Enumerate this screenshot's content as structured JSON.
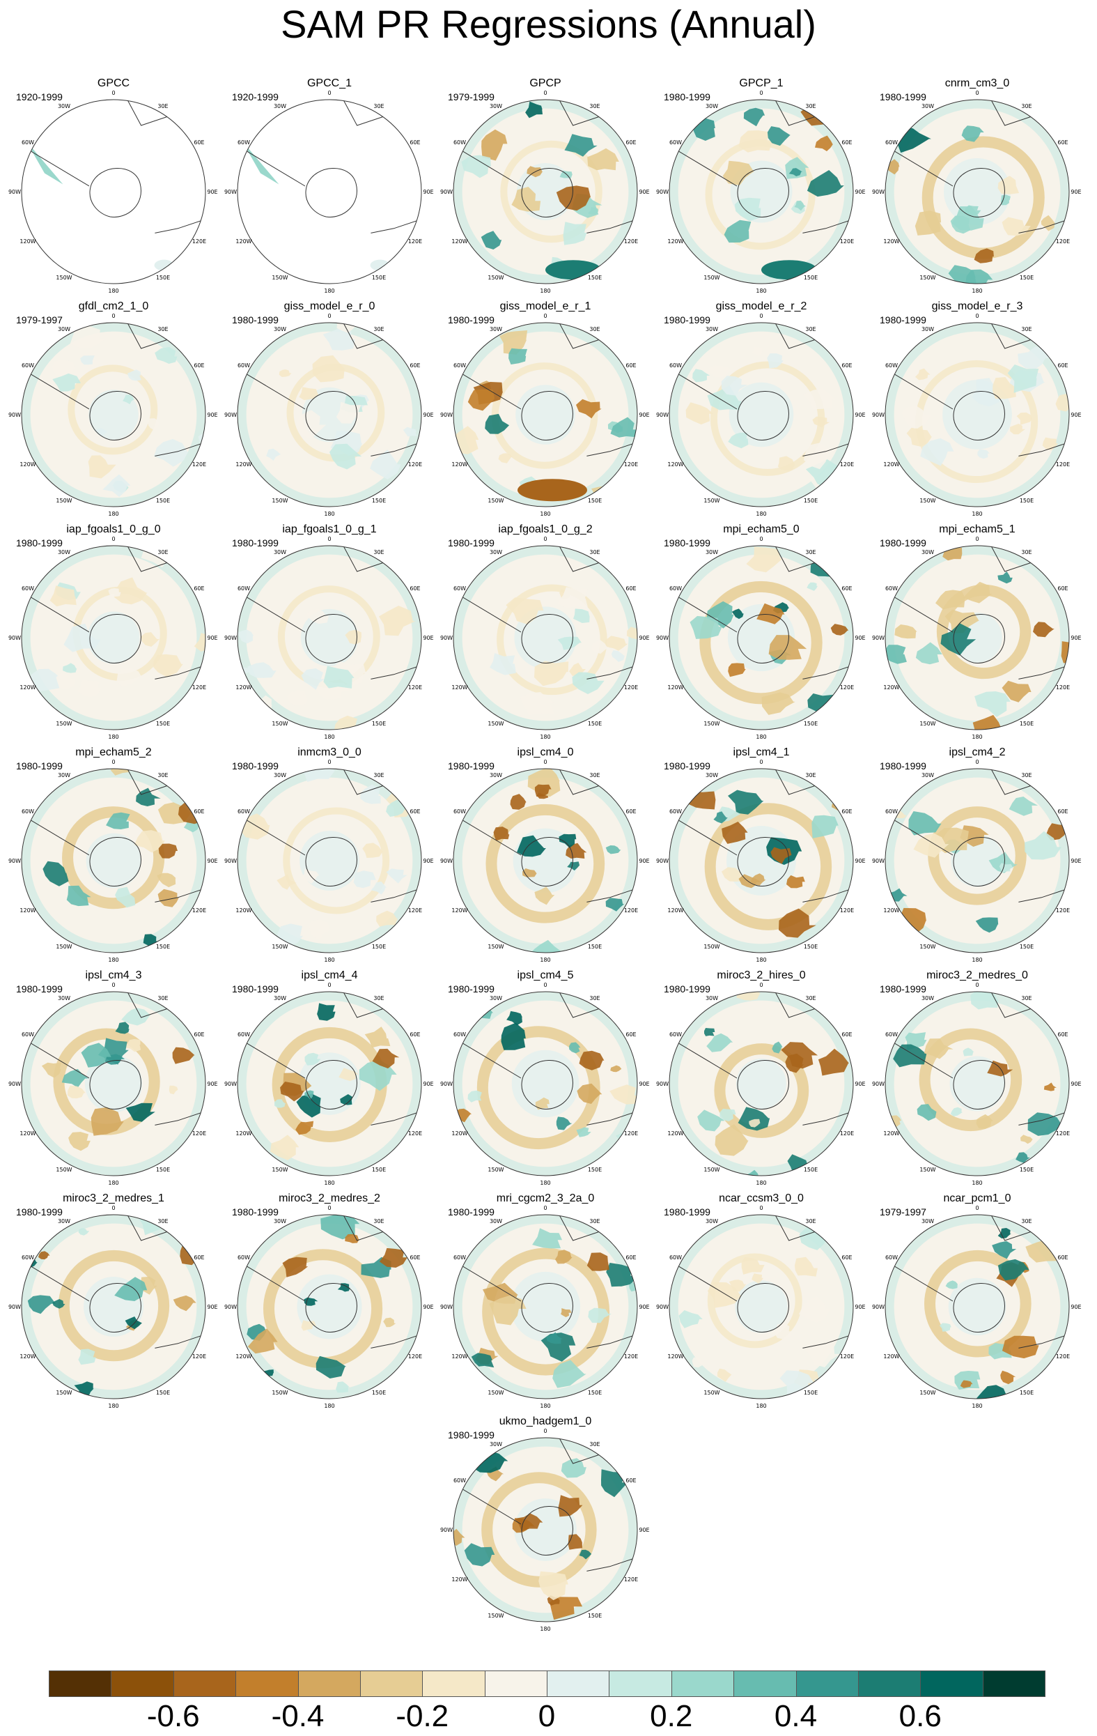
{
  "title": "SAM PR Regressions (Annual)",
  "lon_labels": [
    "0",
    "30E",
    "60E",
    "90E",
    "120E",
    "150E",
    "180",
    "150W",
    "120W",
    "90W",
    "60W",
    "30W"
  ],
  "panels": [
    {
      "name": "GPCC",
      "period": "1920-1999",
      "pattern": "land"
    },
    {
      "name": "GPCC_1",
      "period": "1920-1999",
      "pattern": "land"
    },
    {
      "name": "GPCP",
      "period": "1979-1999",
      "pattern": "obs"
    },
    {
      "name": "GPCP_1",
      "period": "1980-1999",
      "pattern": "obs"
    },
    {
      "name": "cnrm_cm3_0",
      "period": "1980-1999",
      "pattern": "ring"
    },
    {
      "name": "gfdl_cm2_1_0",
      "period": "1979-1997",
      "pattern": "weak"
    },
    {
      "name": "giss_model_e_r_0",
      "period": "1980-1999",
      "pattern": "weak"
    },
    {
      "name": "giss_model_e_r_1",
      "period": "1980-1999",
      "pattern": "brownsouth"
    },
    {
      "name": "giss_model_e_r_2",
      "period": "1980-1999",
      "pattern": "weak"
    },
    {
      "name": "giss_model_e_r_3",
      "period": "1980-1999",
      "pattern": "weak"
    },
    {
      "name": "iap_fgoals1_0_g_0",
      "period": "1980-1999",
      "pattern": "weak"
    },
    {
      "name": "iap_fgoals1_0_g_1",
      "period": "1980-1999",
      "pattern": "weak"
    },
    {
      "name": "iap_fgoals1_0_g_2",
      "period": "1980-1999",
      "pattern": "weak"
    },
    {
      "name": "mpi_echam5_0",
      "period": "1980-1999",
      "pattern": "ring"
    },
    {
      "name": "mpi_echam5_1",
      "period": "1980-1999",
      "pattern": "ring"
    },
    {
      "name": "mpi_echam5_2",
      "period": "1980-1999",
      "pattern": "ring"
    },
    {
      "name": "inmcm3_0_0",
      "period": "1980-1999",
      "pattern": "weak"
    },
    {
      "name": "ipsl_cm4_0",
      "period": "1980-1999",
      "pattern": "ring"
    },
    {
      "name": "ipsl_cm4_1",
      "period": "1980-1999",
      "pattern": "ring"
    },
    {
      "name": "ipsl_cm4_2",
      "period": "1980-1999",
      "pattern": "ring"
    },
    {
      "name": "ipsl_cm4_3",
      "period": "1980-1999",
      "pattern": "ring"
    },
    {
      "name": "ipsl_cm4_4",
      "period": "1980-1999",
      "pattern": "ring"
    },
    {
      "name": "ipsl_cm4_5",
      "period": "1980-1999",
      "pattern": "ring"
    },
    {
      "name": "miroc3_2_hires_0",
      "period": "1980-1999",
      "pattern": "ring"
    },
    {
      "name": "miroc3_2_medres_0",
      "period": "1980-1999",
      "pattern": "ring"
    },
    {
      "name": "miroc3_2_medres_1",
      "period": "1980-1999",
      "pattern": "ring"
    },
    {
      "name": "miroc3_2_medres_2",
      "period": "1980-1999",
      "pattern": "ring"
    },
    {
      "name": "mri_cgcm2_3_2a_0",
      "period": "1980-1999",
      "pattern": "ring"
    },
    {
      "name": "ncar_ccsm3_0_0",
      "period": "1980-1999",
      "pattern": "weak"
    },
    {
      "name": "ncar_pcm1_0",
      "period": "1979-1997",
      "pattern": "ring"
    },
    {
      "name": "ukmo_hadgem1_0",
      "period": "1980-1999",
      "pattern": "ring"
    }
  ],
  "colorbar": {
    "colors": [
      "#543005",
      "#8c510a",
      "#a8651c",
      "#c27f2c",
      "#d4a85f",
      "#e6cd94",
      "#f5e8c8",
      "#f7f3ea",
      "#e2f0ef",
      "#c7eae2",
      "#9ad8cc",
      "#67bcb0",
      "#35978f",
      "#1c7d73",
      "#01665e",
      "#003c30"
    ],
    "labels": [
      "-0.6",
      "-0.4",
      "-0.2",
      "0",
      "0.2",
      "0.4",
      "0.6"
    ],
    "label_values": [
      -0.6,
      -0.4,
      -0.2,
      0,
      0.2,
      0.4,
      0.6
    ],
    "range": [
      -0.8,
      0.8
    ]
  }
}
